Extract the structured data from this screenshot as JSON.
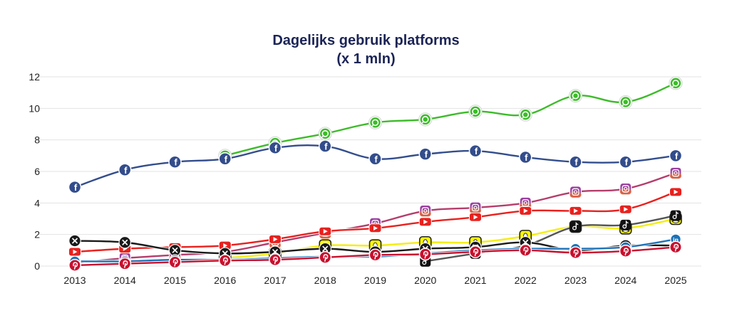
{
  "chart_data": {
    "type": "line",
    "title": "Dagelijks gebruik platforms",
    "subtitle": "(x 1 mln)",
    "xlabel": "",
    "ylabel": "",
    "ylim": [
      0,
      12
    ],
    "yticks": [
      "0",
      "2",
      "4",
      "6",
      "8",
      "10",
      "12"
    ],
    "grid": true,
    "categories": [
      "2013",
      "2014",
      "2015",
      "2016",
      "2017",
      "2018",
      "2019",
      "2020",
      "2021",
      "2022",
      "2023",
      "2024",
      "2025"
    ],
    "series": [
      {
        "name": "WhatsApp",
        "icon": "whatsapp-icon",
        "color": "#3dbb2a",
        "values": [
          null,
          null,
          null,
          7.0,
          7.8,
          8.4,
          9.1,
          9.3,
          9.8,
          9.6,
          10.8,
          10.4,
          11.6
        ]
      },
      {
        "name": "Facebook",
        "icon": "facebook-icon",
        "color": "#334d8c",
        "values": [
          5.0,
          6.1,
          6.6,
          6.8,
          7.5,
          7.6,
          6.8,
          7.1,
          7.3,
          6.9,
          6.6,
          6.6,
          7.0
        ]
      },
      {
        "name": "Instagram",
        "icon": "instagram-icon",
        "color": "#b43d6b",
        "values": [
          0.2,
          0.5,
          0.7,
          0.9,
          1.5,
          2.1,
          2.7,
          3.5,
          3.7,
          4.0,
          4.7,
          4.9,
          5.9
        ]
      },
      {
        "name": "YouTube",
        "icon": "youtube-icon",
        "color": "#e8211e",
        "values": [
          0.9,
          1.1,
          1.2,
          1.3,
          1.7,
          2.2,
          2.4,
          2.8,
          3.1,
          3.5,
          3.5,
          3.6,
          4.7
        ]
      },
      {
        "name": "Snapchat",
        "icon": "snapchat-icon",
        "color": "#f5ee1a",
        "values": [
          null,
          null,
          null,
          0.5,
          0.8,
          1.3,
          1.3,
          1.5,
          1.5,
          1.9,
          2.5,
          2.4,
          3.0
        ]
      },
      {
        "name": "TikTok",
        "icon": "tiktok-icon",
        "color": "#555555",
        "values": [
          null,
          null,
          null,
          null,
          null,
          null,
          null,
          0.3,
          0.8,
          1.3,
          2.5,
          2.6,
          3.2
        ]
      },
      {
        "name": "X",
        "icon": "x-icon",
        "color": "#1a1a1a",
        "values": [
          1.6,
          1.5,
          1.0,
          0.8,
          0.9,
          1.1,
          0.9,
          1.1,
          1.2,
          1.5,
          1.0,
          1.3,
          1.3
        ]
      },
      {
        "name": "LinkedIn",
        "icon": "linkedin-icon",
        "color": "#1e72b6",
        "values": [
          0.3,
          0.3,
          0.4,
          0.4,
          0.5,
          0.6,
          0.6,
          0.8,
          1.0,
          1.1,
          1.1,
          1.2,
          1.7
        ]
      },
      {
        "name": "Pinterest",
        "icon": "pinterest-icon",
        "color": "#c8102e",
        "values": [
          0.05,
          0.15,
          0.25,
          0.35,
          0.4,
          0.55,
          0.7,
          0.75,
          0.9,
          1.0,
          0.85,
          0.95,
          1.2
        ]
      }
    ]
  }
}
